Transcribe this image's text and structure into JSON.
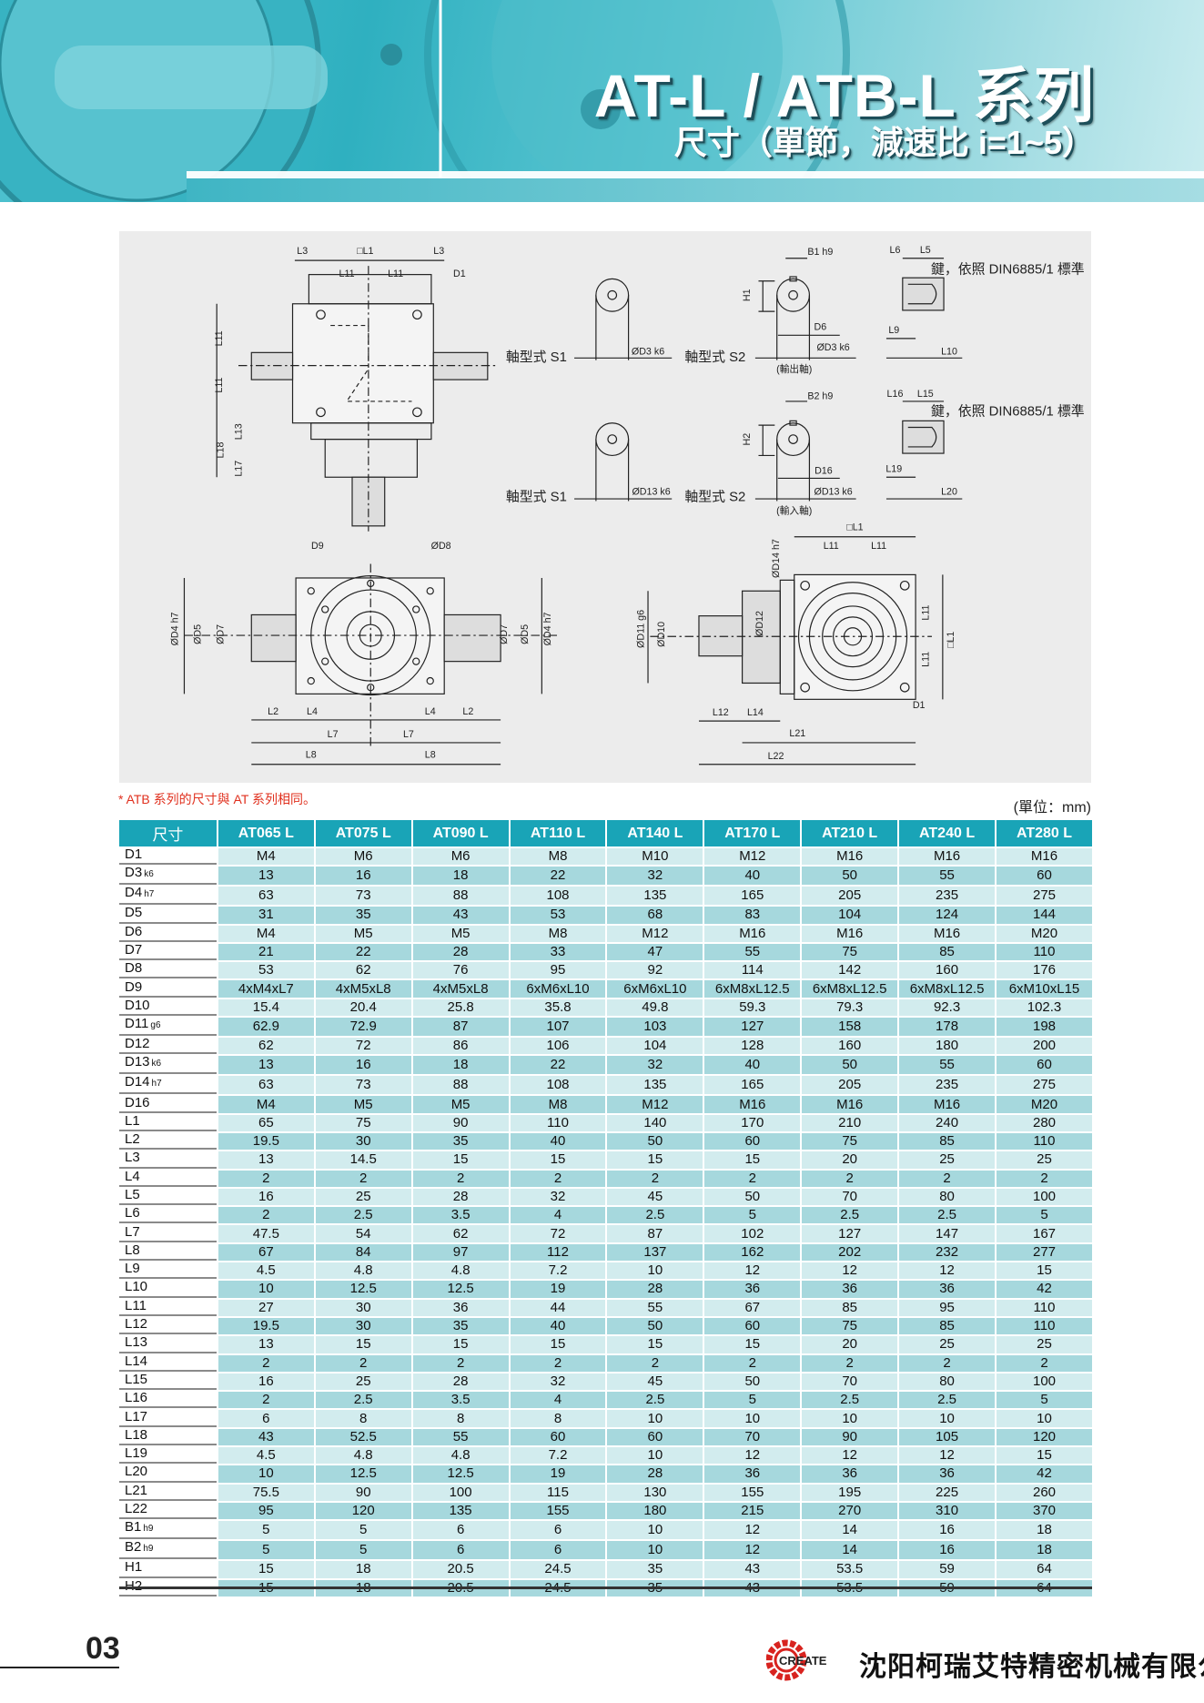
{
  "header": {
    "title": "AT-L / ATB-L 系列",
    "subtitle": "尺寸（單節，減速比 i=1~5）"
  },
  "drawing": {
    "labels": [
      "L3",
      "□L1",
      "L3",
      "L11",
      "L11",
      "D1",
      "L11",
      "L11",
      "L13",
      "L18",
      "L17",
      "ØD3 k6",
      "B1 h9",
      "H1",
      "D6",
      "ØD3 k6",
      "(輸出軸)",
      "L6",
      "L5",
      "L9",
      "L10",
      "ØD13 k6",
      "B2 h9",
      "H2",
      "D16",
      "ØD13 k6",
      "(輸入軸)",
      "L16",
      "L15",
      "L19",
      "L20",
      "D9",
      "ØD8",
      "ØD4 h7",
      "ØD5",
      "ØD7",
      "ØD7",
      "ØD5",
      "ØD4 h7",
      "L2",
      "L4",
      "L4",
      "L2",
      "L7",
      "L7",
      "L8",
      "L8",
      "□L1",
      "L11",
      "L11",
      "ØD14 h7",
      "ØD12",
      "ØD11 g6",
      "ØD10",
      "L11",
      "L11",
      "□L1",
      "D1",
      "L12",
      "L14",
      "L21",
      "L22",
      "軸型式  S1",
      "軸型式  S1",
      "軸型式  S2",
      "軸型式  S2",
      "鍵，依照 DIN6885/1 標準",
      "鍵，依照 DIN6885/1 標準"
    ]
  },
  "note": "* ATB 系列的尺寸與 AT 系列相同。",
  "unit": "(單位：mm)",
  "table": {
    "corner": "尺寸",
    "columns": [
      "AT065 L",
      "AT075 L",
      "AT090 L",
      "AT110 L",
      "AT140 L",
      "AT170 L",
      "AT210 L",
      "AT240 L",
      "AT280 L"
    ],
    "rows": [
      {
        "label": "D1",
        "sub": "",
        "values": [
          "M4",
          "M6",
          "M6",
          "M8",
          "M10",
          "M12",
          "M16",
          "M16",
          "M16"
        ]
      },
      {
        "label": "D3",
        "sub": "k6",
        "values": [
          "13",
          "16",
          "18",
          "22",
          "32",
          "40",
          "50",
          "55",
          "60"
        ]
      },
      {
        "label": "D4",
        "sub": "h7",
        "values": [
          "63",
          "73",
          "88",
          "108",
          "135",
          "165",
          "205",
          "235",
          "275"
        ]
      },
      {
        "label": "D5",
        "sub": "",
        "values": [
          "31",
          "35",
          "43",
          "53",
          "68",
          "83",
          "104",
          "124",
          "144"
        ]
      },
      {
        "label": "D6",
        "sub": "",
        "values": [
          "M4",
          "M5",
          "M5",
          "M8",
          "M12",
          "M16",
          "M16",
          "M16",
          "M20"
        ]
      },
      {
        "label": "D7",
        "sub": "",
        "values": [
          "21",
          "22",
          "28",
          "33",
          "47",
          "55",
          "75",
          "85",
          "110"
        ]
      },
      {
        "label": "D8",
        "sub": "",
        "values": [
          "53",
          "62",
          "76",
          "95",
          "92",
          "114",
          "142",
          "160",
          "176"
        ]
      },
      {
        "label": "D9",
        "sub": "",
        "values": [
          "4xM4xL7",
          "4xM5xL8",
          "4xM5xL8",
          "6xM6xL10",
          "6xM6xL10",
          "6xM8xL12.5",
          "6xM8xL12.5",
          "6xM8xL12.5",
          "6xM10xL15"
        ]
      },
      {
        "label": "D10",
        "sub": "",
        "values": [
          "15.4",
          "20.4",
          "25.8",
          "35.8",
          "49.8",
          "59.3",
          "79.3",
          "92.3",
          "102.3"
        ]
      },
      {
        "label": "D11",
        "sub": "g6",
        "values": [
          "62.9",
          "72.9",
          "87",
          "107",
          "103",
          "127",
          "158",
          "178",
          "198"
        ]
      },
      {
        "label": "D12",
        "sub": "",
        "values": [
          "62",
          "72",
          "86",
          "106",
          "104",
          "128",
          "160",
          "180",
          "200"
        ]
      },
      {
        "label": "D13",
        "sub": "k6",
        "values": [
          "13",
          "16",
          "18",
          "22",
          "32",
          "40",
          "50",
          "55",
          "60"
        ]
      },
      {
        "label": "D14",
        "sub": "h7",
        "values": [
          "63",
          "73",
          "88",
          "108",
          "135",
          "165",
          "205",
          "235",
          "275"
        ]
      },
      {
        "label": "D16",
        "sub": "",
        "values": [
          "M4",
          "M5",
          "M5",
          "M8",
          "M12",
          "M16",
          "M16",
          "M16",
          "M20"
        ]
      },
      {
        "label": "L1",
        "sub": "",
        "values": [
          "65",
          "75",
          "90",
          "110",
          "140",
          "170",
          "210",
          "240",
          "280"
        ]
      },
      {
        "label": "L2",
        "sub": "",
        "values": [
          "19.5",
          "30",
          "35",
          "40",
          "50",
          "60",
          "75",
          "85",
          "110"
        ]
      },
      {
        "label": "L3",
        "sub": "",
        "values": [
          "13",
          "14.5",
          "15",
          "15",
          "15",
          "15",
          "20",
          "25",
          "25"
        ]
      },
      {
        "label": "L4",
        "sub": "",
        "values": [
          "2",
          "2",
          "2",
          "2",
          "2",
          "2",
          "2",
          "2",
          "2"
        ]
      },
      {
        "label": "L5",
        "sub": "",
        "values": [
          "16",
          "25",
          "28",
          "32",
          "45",
          "50",
          "70",
          "80",
          "100"
        ]
      },
      {
        "label": "L6",
        "sub": "",
        "values": [
          "2",
          "2.5",
          "3.5",
          "4",
          "2.5",
          "5",
          "2.5",
          "2.5",
          "5"
        ]
      },
      {
        "label": "L7",
        "sub": "",
        "values": [
          "47.5",
          "54",
          "62",
          "72",
          "87",
          "102",
          "127",
          "147",
          "167"
        ]
      },
      {
        "label": "L8",
        "sub": "",
        "values": [
          "67",
          "84",
          "97",
          "112",
          "137",
          "162",
          "202",
          "232",
          "277"
        ]
      },
      {
        "label": "L9",
        "sub": "",
        "values": [
          "4.5",
          "4.8",
          "4.8",
          "7.2",
          "10",
          "12",
          "12",
          "12",
          "15"
        ]
      },
      {
        "label": "L10",
        "sub": "",
        "values": [
          "10",
          "12.5",
          "12.5",
          "19",
          "28",
          "36",
          "36",
          "36",
          "42"
        ]
      },
      {
        "label": "L11",
        "sub": "",
        "values": [
          "27",
          "30",
          "36",
          "44",
          "55",
          "67",
          "85",
          "95",
          "110"
        ]
      },
      {
        "label": "L12",
        "sub": "",
        "values": [
          "19.5",
          "30",
          "35",
          "40",
          "50",
          "60",
          "75",
          "85",
          "110"
        ]
      },
      {
        "label": "L13",
        "sub": "",
        "values": [
          "13",
          "15",
          "15",
          "15",
          "15",
          "15",
          "20",
          "25",
          "25"
        ]
      },
      {
        "label": "L14",
        "sub": "",
        "values": [
          "2",
          "2",
          "2",
          "2",
          "2",
          "2",
          "2",
          "2",
          "2"
        ]
      },
      {
        "label": "L15",
        "sub": "",
        "values": [
          "16",
          "25",
          "28",
          "32",
          "45",
          "50",
          "70",
          "80",
          "100"
        ]
      },
      {
        "label": "L16",
        "sub": "",
        "values": [
          "2",
          "2.5",
          "3.5",
          "4",
          "2.5",
          "5",
          "2.5",
          "2.5",
          "5"
        ]
      },
      {
        "label": "L17",
        "sub": "",
        "values": [
          "6",
          "8",
          "8",
          "8",
          "10",
          "10",
          "10",
          "10",
          "10"
        ]
      },
      {
        "label": "L18",
        "sub": "",
        "values": [
          "43",
          "52.5",
          "55",
          "60",
          "60",
          "70",
          "90",
          "105",
          "120"
        ]
      },
      {
        "label": "L19",
        "sub": "",
        "values": [
          "4.5",
          "4.8",
          "4.8",
          "7.2",
          "10",
          "12",
          "12",
          "12",
          "15"
        ]
      },
      {
        "label": "L20",
        "sub": "",
        "values": [
          "10",
          "12.5",
          "12.5",
          "19",
          "28",
          "36",
          "36",
          "36",
          "42"
        ]
      },
      {
        "label": "L21",
        "sub": "",
        "values": [
          "75.5",
          "90",
          "100",
          "115",
          "130",
          "155",
          "195",
          "225",
          "260"
        ]
      },
      {
        "label": "L22",
        "sub": "",
        "values": [
          "95",
          "120",
          "135",
          "155",
          "180",
          "215",
          "270",
          "310",
          "370"
        ]
      },
      {
        "label": "B1",
        "sub": "h9",
        "values": [
          "5",
          "5",
          "6",
          "6",
          "10",
          "12",
          "14",
          "16",
          "18"
        ]
      },
      {
        "label": "B2",
        "sub": "h9",
        "values": [
          "5",
          "5",
          "6",
          "6",
          "10",
          "12",
          "14",
          "16",
          "18"
        ]
      },
      {
        "label": "H1",
        "sub": "",
        "values": [
          "15",
          "18",
          "20.5",
          "24.5",
          "35",
          "43",
          "53.5",
          "59",
          "64"
        ]
      },
      {
        "label": "H2",
        "sub": "",
        "values": [
          "15",
          "18",
          "20.5",
          "24.5",
          "35",
          "43",
          "53.5",
          "59",
          "64"
        ]
      }
    ]
  },
  "footer": {
    "page_number": "03",
    "logo_text": "CREATE",
    "company": "沈阳柯瑞艾特精密机械有限公司"
  },
  "colors": {
    "header_teal": "#19a4b7",
    "row_light": "#d2ecee",
    "row_dark": "#a6d8dd",
    "note_red": "#e0301e",
    "logo_red": "#d8231f"
  }
}
